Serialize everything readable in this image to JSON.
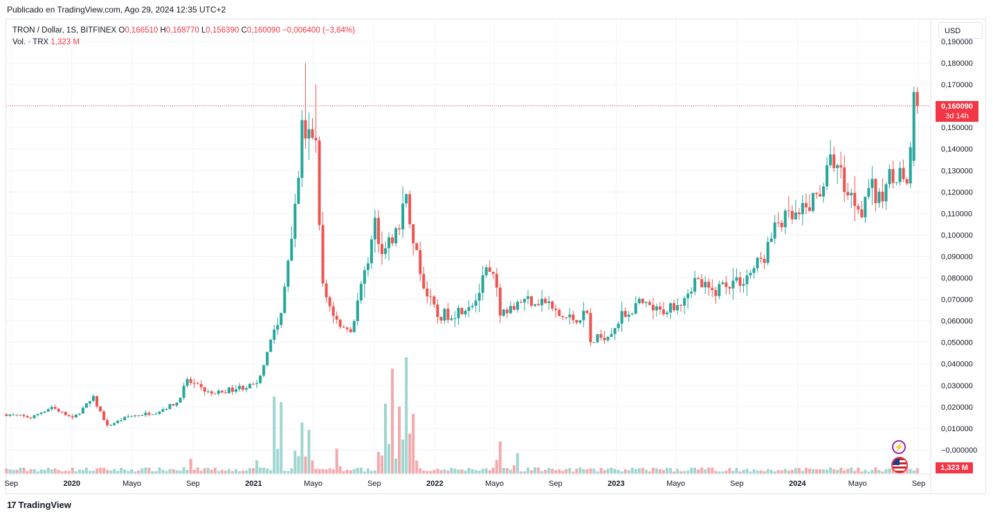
{
  "header": {
    "published": "Publicado en TradingView.com, Ago 29, 2024 12:35 UTC+2"
  },
  "legend": {
    "symbol": "TRON / Dollar, 1S, BITFINEX",
    "open_label": "O",
    "open": "0,166510",
    "high_label": "H",
    "high": "0,168770",
    "low_label": "L",
    "low": "0,156390",
    "close_label": "C",
    "close": "0,160090",
    "change": "−0,006400 (−3,84%)",
    "vol_label": "Vol. · TRX",
    "vol_value": "1,323 M"
  },
  "currency_button": "USD",
  "price_tag": {
    "price": "0,160090",
    "countdown": "3d 14h"
  },
  "volume_tag": "1,323 M",
  "footer": {
    "brand": "TradingView",
    "logo_glyph": "17"
  },
  "icons": {
    "bolt": "lightning-icon",
    "flag": "us-flag-icon"
  },
  "colors": {
    "up": "#26a69a",
    "down": "#ef5350",
    "up_vol": "#9fd6cf",
    "down_vol": "#f4a9ac",
    "last_price": "#f23645",
    "grid": "#f0f3fa"
  },
  "chart_data": {
    "type": "candlestick",
    "symbol": "TRON / Dollar",
    "interval": "1S",
    "exchange": "BITFINEX",
    "y_axis_ticks": [
      "0,190000",
      "0,180000",
      "0,170000",
      "0,160000",
      "0,150000",
      "0,140000",
      "0,130000",
      "0,120000",
      "0,110000",
      "0,100000",
      "0,090000",
      "0,080000",
      "0,070000",
      "0,060000",
      "0,050000",
      "0,040000",
      "0,030000",
      "0,020000",
      "0,010000",
      "−0,000000"
    ],
    "ylim": [
      -0.008,
      0.193
    ],
    "x_axis_ticks": [
      "Sep",
      "2020",
      "Mayo",
      "Sep",
      "2021",
      "Mayo",
      "Sep",
      "2022",
      "Mayo",
      "Sep",
      "2023",
      "Mayo",
      "Sep",
      "2024",
      "Mayo",
      "Sep"
    ],
    "last_price": 0.16009,
    "anchors": [
      [
        "2019-08-26",
        0.0165
      ],
      [
        "2019-10-14",
        0.015
      ],
      [
        "2019-11-25",
        0.02
      ],
      [
        "2020-01-06",
        0.0145
      ],
      [
        "2020-02-17",
        0.024
      ],
      [
        "2020-03-16",
        0.011
      ],
      [
        "2020-04-27",
        0.0155
      ],
      [
        "2020-06-22",
        0.0175
      ],
      [
        "2020-08-03",
        0.022
      ],
      [
        "2020-08-24",
        0.032
      ],
      [
        "2020-10-12",
        0.026
      ],
      [
        "2020-12-07",
        0.029
      ],
      [
        "2021-01-11",
        0.03
      ],
      [
        "2021-02-08",
        0.052
      ],
      [
        "2021-03-01",
        0.062
      ],
      [
        "2021-04-05",
        0.13
      ],
      [
        "2021-04-12",
        0.15
      ],
      [
        "2021-04-26",
        0.145
      ],
      [
        "2021-05-10",
        0.14
      ],
      [
        "2021-05-24",
        0.075
      ],
      [
        "2021-06-21",
        0.06
      ],
      [
        "2021-07-19",
        0.055
      ],
      [
        "2021-08-23",
        0.09
      ],
      [
        "2021-09-06",
        0.105
      ],
      [
        "2021-09-20",
        0.095
      ],
      [
        "2021-10-18",
        0.1
      ],
      [
        "2021-11-08",
        0.12
      ],
      [
        "2021-11-22",
        0.095
      ],
      [
        "2021-12-20",
        0.072
      ],
      [
        "2022-01-10",
        0.062
      ],
      [
        "2022-02-14",
        0.064
      ],
      [
        "2022-03-28",
        0.07
      ],
      [
        "2022-04-18",
        0.082
      ],
      [
        "2022-05-02",
        0.08
      ],
      [
        "2022-05-16",
        0.065
      ],
      [
        "2022-06-13",
        0.068
      ],
      [
        "2022-07-11",
        0.07
      ],
      [
        "2022-08-15",
        0.069
      ],
      [
        "2022-09-12",
        0.062
      ],
      [
        "2022-10-10",
        0.061
      ],
      [
        "2022-11-07",
        0.063
      ],
      [
        "2022-11-14",
        0.05
      ],
      [
        "2022-12-19",
        0.054
      ],
      [
        "2023-01-16",
        0.062
      ],
      [
        "2023-02-20",
        0.068
      ],
      [
        "2023-04-03",
        0.064
      ],
      [
        "2023-05-15",
        0.07
      ],
      [
        "2023-06-12",
        0.079
      ],
      [
        "2023-07-17",
        0.073
      ],
      [
        "2023-08-14",
        0.078
      ],
      [
        "2023-09-18",
        0.079
      ],
      [
        "2023-10-30",
        0.09
      ],
      [
        "2023-11-27",
        0.106
      ],
      [
        "2024-01-08",
        0.108
      ],
      [
        "2024-02-12",
        0.118
      ],
      [
        "2024-03-18",
        0.136
      ],
      [
        "2024-04-15",
        0.12
      ],
      [
        "2024-05-13",
        0.113
      ],
      [
        "2024-05-27",
        0.124
      ],
      [
        "2024-06-17",
        0.115
      ],
      [
        "2024-07-15",
        0.13
      ],
      [
        "2024-08-12",
        0.125
      ],
      [
        "2024-08-19",
        0.135
      ],
      [
        "2024-08-26",
        0.1665
      ]
    ],
    "volume_peaks": [
      [
        "2020-08-24",
        0.1
      ],
      [
        "2021-01-04",
        0.09
      ],
      [
        "2021-02-08",
        0.53
      ],
      [
        "2021-02-22",
        0.49
      ],
      [
        "2021-04-05",
        0.35
      ],
      [
        "2021-04-19",
        0.3
      ],
      [
        "2021-06-14",
        0.17
      ],
      [
        "2021-09-20",
        0.48
      ],
      [
        "2021-10-04",
        0.72
      ],
      [
        "2021-10-18",
        0.46
      ],
      [
        "2021-11-01",
        0.8
      ],
      [
        "2021-11-15",
        0.41
      ],
      [
        "2022-05-09",
        0.22
      ],
      [
        "2022-06-13",
        0.14
      ]
    ]
  }
}
